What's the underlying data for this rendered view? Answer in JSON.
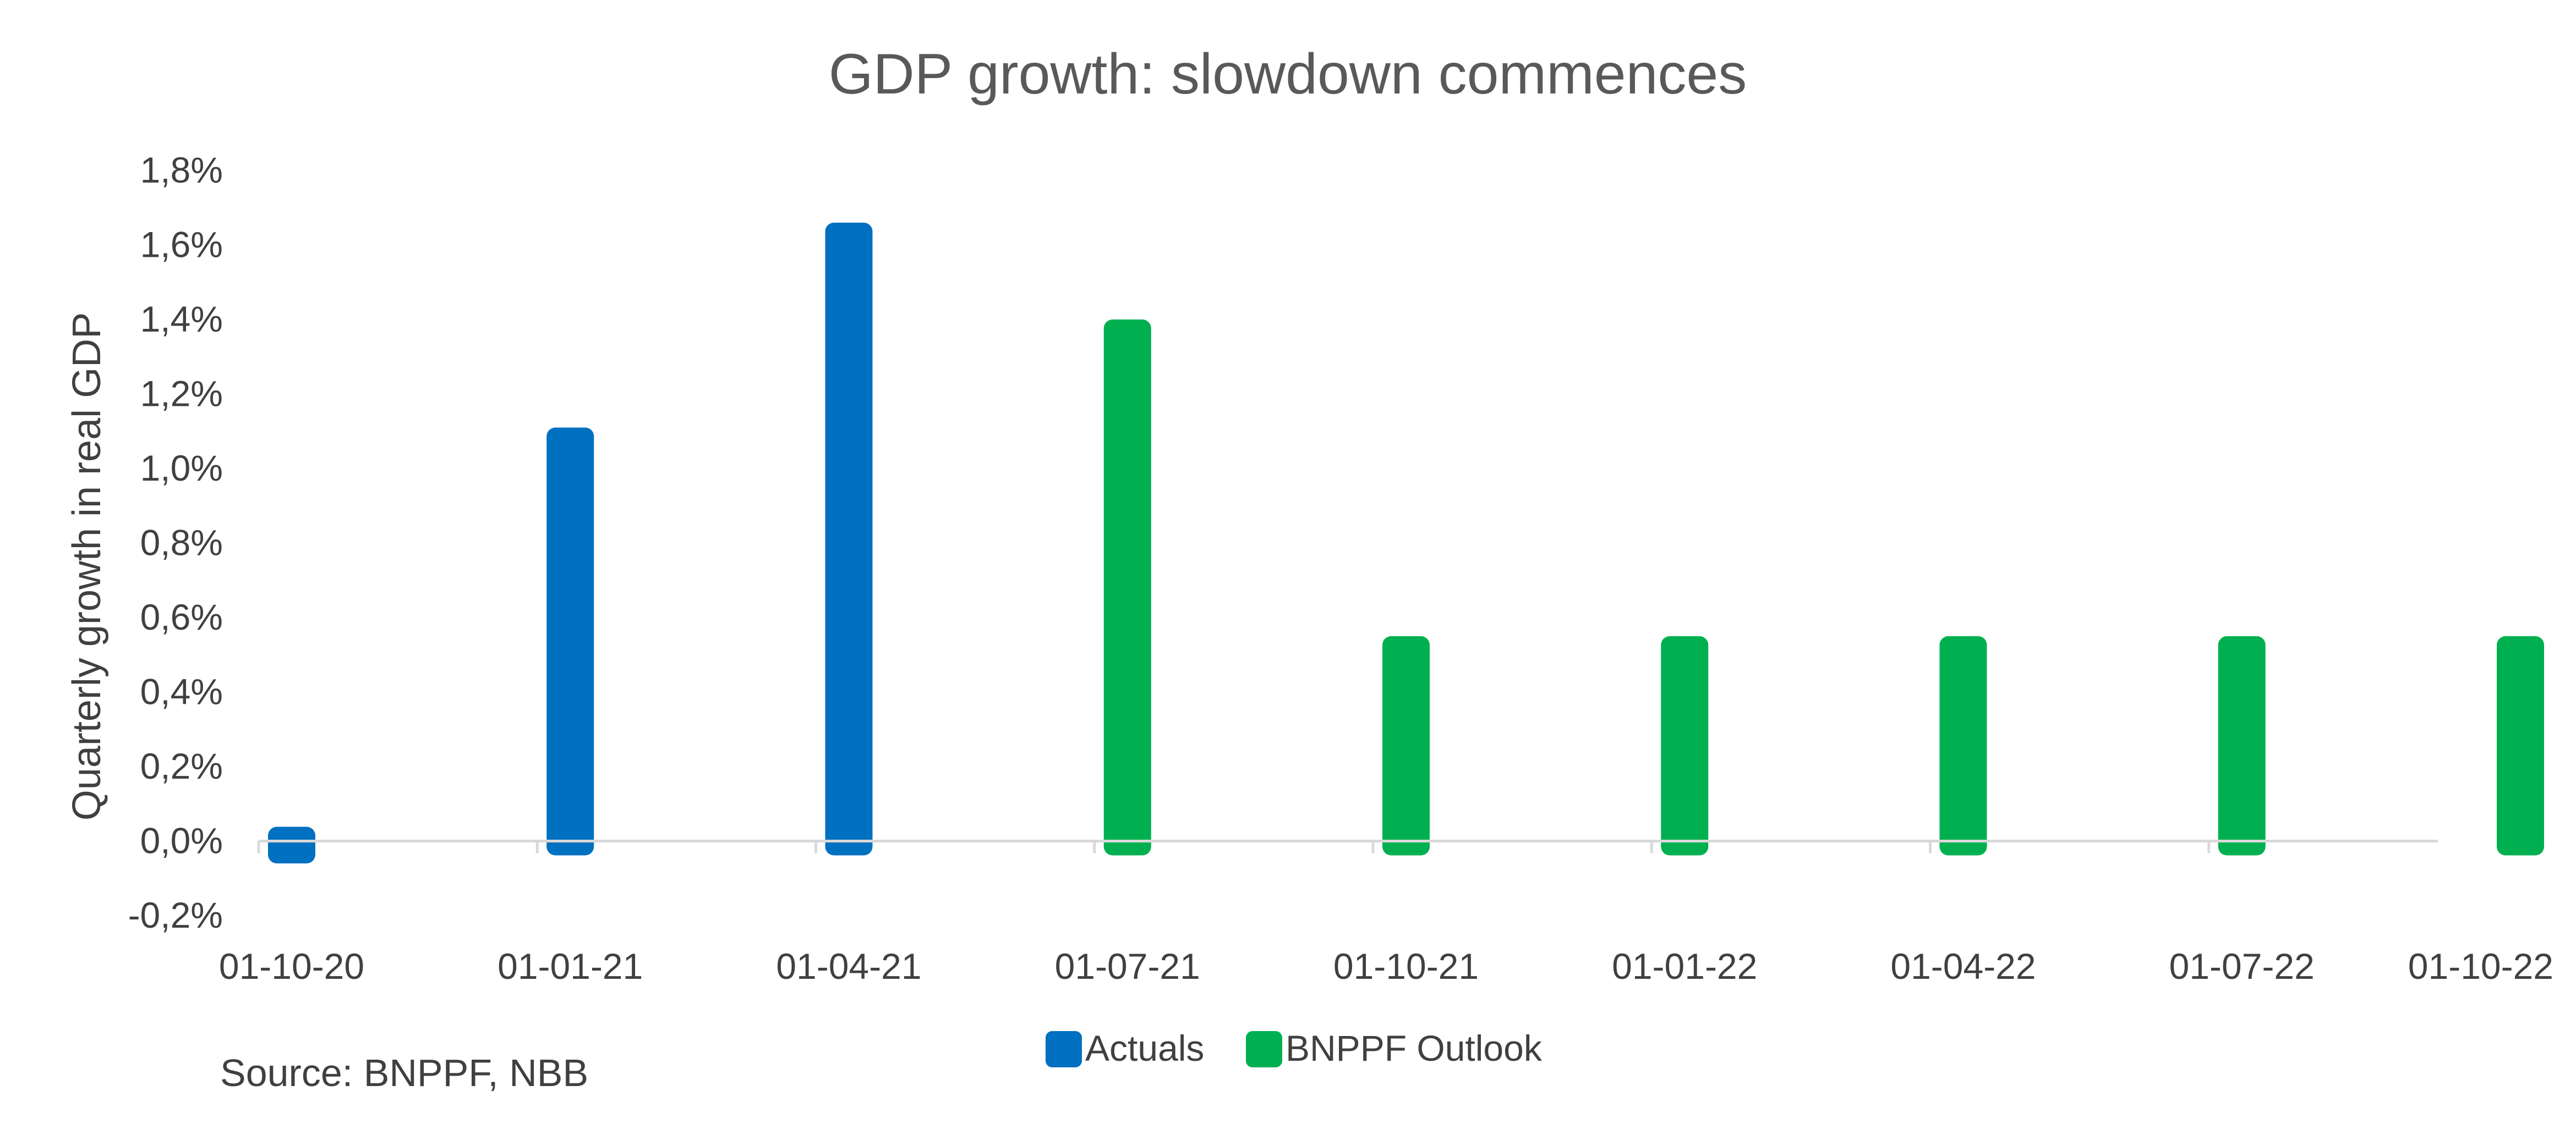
{
  "chart_data": {
    "type": "bar",
    "title": "GDP growth: slowdown commences",
    "xlabel": "",
    "ylabel": "Quarterly growth in real GDP",
    "ylim": [
      -0.2,
      1.8
    ],
    "y_ticks": [
      "-0,2%",
      "0,0%",
      "0,2%",
      "0,4%",
      "0,6%",
      "0,8%",
      "1,0%",
      "1,2%",
      "1,4%",
      "1,6%",
      "1,8%"
    ],
    "y_tick_values": [
      -0.2,
      0.0,
      0.2,
      0.4,
      0.6,
      0.8,
      1.0,
      1.2,
      1.4,
      1.6,
      1.8
    ],
    "categories": [
      "01-10-20",
      "01-01-21",
      "01-04-21",
      "01-07-21",
      "01-10-21",
      "01-01-22",
      "01-04-22",
      "01-07-22",
      "01-10-22"
    ],
    "series": [
      {
        "name": "Actuals",
        "color": "#0070C0",
        "values": [
          -0.06,
          1.11,
          1.66,
          null,
          null,
          null,
          null,
          null,
          null
        ]
      },
      {
        "name": "BNPPF Outlook",
        "color": "#00B050",
        "values": [
          null,
          null,
          null,
          1.4,
          0.55,
          0.55,
          0.55,
          0.55,
          0.55
        ]
      }
    ],
    "grid": false,
    "legend_position": "bottom-center",
    "source": "Source: BNPPF, NBB"
  }
}
